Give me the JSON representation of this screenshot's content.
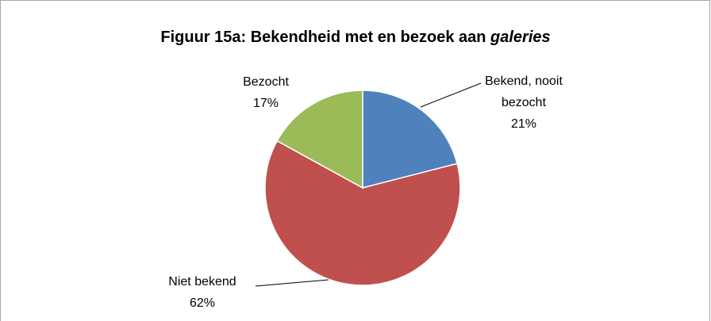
{
  "chart_data": {
    "type": "pie",
    "title": [
      "Figuur 15a: Bekendheid met en bezoek aan ",
      "galeries"
    ],
    "title_italic": [
      false,
      true
    ],
    "categories": [
      "Bekend, nooit bezocht",
      "Niet bekend",
      "Bezocht"
    ],
    "values": [
      21,
      62,
      17
    ],
    "value_labels": [
      "21%",
      "62%",
      "17%"
    ],
    "colors": [
      "#4f81bd",
      "#c0504d",
      "#9bbb59"
    ]
  }
}
